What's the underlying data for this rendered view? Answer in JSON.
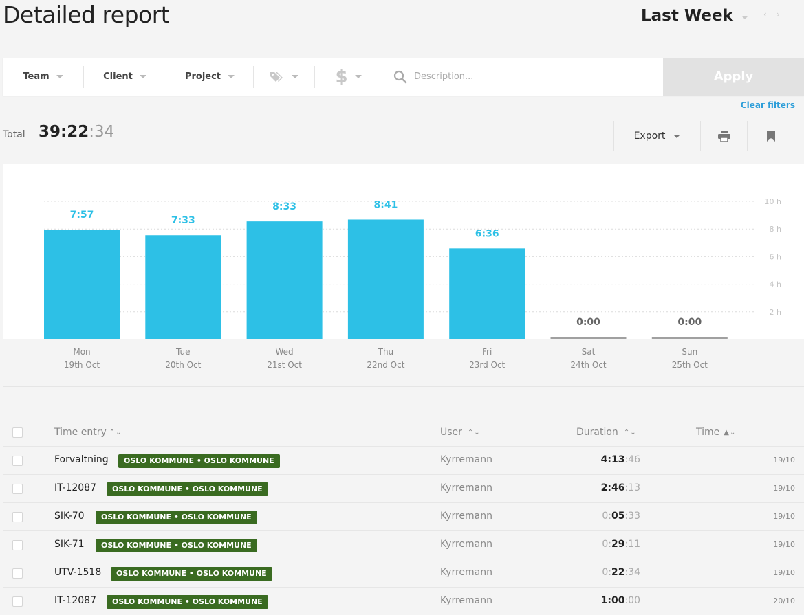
{
  "header": {
    "title": "Detailed report",
    "period": "Last Week",
    "prev_arrow": "‹",
    "next_arrow": "›"
  },
  "filters": {
    "team": "Team",
    "client": "Client",
    "project": "Project",
    "tags_icon": "tag-icon",
    "billable_icon": "dollar-icon",
    "description_placeholder": "Description...",
    "apply": "Apply",
    "clear": "Clear filters"
  },
  "summary": {
    "total_label": "Total",
    "total_hm": "39:22",
    "total_sec": ":34",
    "export_label": "Export"
  },
  "colors": {
    "bar": "#2dc0e6",
    "bar_empty": "#a0a0a0",
    "tag": "#3a6b21",
    "link": "#2d9ed9"
  },
  "chart_data": {
    "type": "bar",
    "categories": [
      "Mon",
      "Tue",
      "Wed",
      "Thu",
      "Fri",
      "Sat",
      "Sun"
    ],
    "dates": [
      "19th Oct",
      "20th Oct",
      "21st Oct",
      "22nd Oct",
      "23rd Oct",
      "24th Oct",
      "25th Oct"
    ],
    "values": [
      7.95,
      7.55,
      8.55,
      8.683,
      6.6,
      0,
      0
    ],
    "data_labels": [
      "7:57",
      "7:33",
      "8:33",
      "8:41",
      "6:36",
      "0:00",
      "0:00"
    ],
    "ylim": [
      0,
      10
    ],
    "yticks": [
      2,
      4,
      6,
      8,
      10
    ],
    "ytick_labels": [
      "2 h",
      "4 h",
      "6 h",
      "8 h",
      "10 h"
    ],
    "grid": true,
    "ylabel": "",
    "xlabel": "",
    "title": ""
  },
  "table": {
    "columns": {
      "entry": "Time entry",
      "user": "User",
      "duration": "Duration",
      "time": "Time"
    },
    "rows": [
      {
        "entry": "Forvaltning",
        "tag": "OSLO KOMMUNE  •  OSLO KOMMUNE",
        "user": "Kyrremann",
        "dur_hm": "4:13",
        "dur_sec": ":46",
        "dur_lead": "",
        "date": "19/10"
      },
      {
        "entry": "IT-12087",
        "tag": "OSLO KOMMUNE  •  OSLO KOMMUNE",
        "user": "Kyrremann",
        "dur_hm": "2:46",
        "dur_sec": ":13",
        "dur_lead": "",
        "date": "19/10"
      },
      {
        "entry": "SIK-70",
        "tag": "OSLO KOMMUNE  •  OSLO KOMMUNE",
        "user": "Kyrremann",
        "dur_lead": "0:",
        "dur_hm": "05",
        "dur_sec": ":33",
        "date": "19/10"
      },
      {
        "entry": "SIK-71",
        "tag": "OSLO KOMMUNE  •  OSLO KOMMUNE",
        "user": "Kyrremann",
        "dur_lead": "0:",
        "dur_hm": "29",
        "dur_sec": ":11",
        "date": "19/10"
      },
      {
        "entry": "UTV-1518",
        "tag": "OSLO KOMMUNE  •  OSLO KOMMUNE",
        "user": "Kyrremann",
        "dur_lead": "0:",
        "dur_hm": "22",
        "dur_sec": ":34",
        "date": "19/10"
      },
      {
        "entry": "IT-12087",
        "tag": "OSLO KOMMUNE  •  OSLO KOMMUNE",
        "user": "Kyrremann",
        "dur_hm": "1:00",
        "dur_sec": ":00",
        "dur_lead": "",
        "date": "20/10"
      }
    ]
  }
}
